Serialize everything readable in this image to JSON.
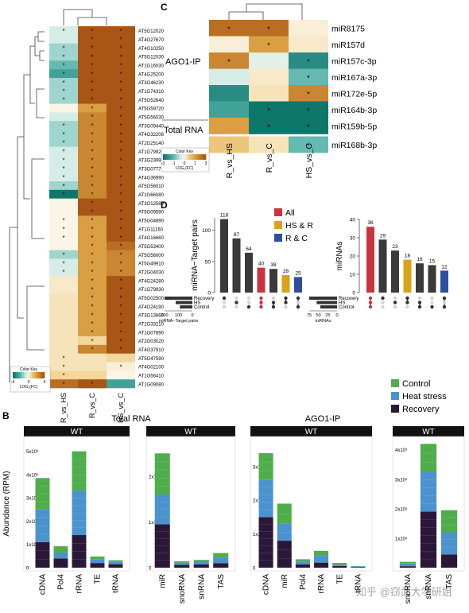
{
  "panels": {
    "a": "",
    "b": "B",
    "c": "C",
    "d": "D"
  },
  "colors": {
    "teal_dark": "#0e776c",
    "teal_mid": "#58b3aa",
    "teal_light": "#cdebe6",
    "neutral": "#fbf5e8",
    "orange_light": "#f0d08a",
    "orange_mid": "#d89a3a",
    "orange_dark": "#a85516",
    "control": "#4fae4b",
    "heat": "#4b93cf",
    "recovery": "#2b1838",
    "all": "#cc3340",
    "hs_r": "#d8a318",
    "r_c": "#2e4ea1",
    "upset_bar": "#3a3a3a"
  },
  "chart_data": [
    {
      "id": "heatmap-a",
      "type": "heatmap",
      "columns": [
        "R_vs_HS",
        "R_vs_C",
        "HS_vs_C"
      ],
      "rows": [
        "AT5G12020",
        "AT4G27670",
        "AT4G10250",
        "AT5G12030",
        "AT1G16030",
        "AT4G25200",
        "AT3G46230",
        "AT1G74310",
        "AT5G52640",
        "AT5G59720",
        "AT5G56030",
        "AT3G09440",
        "AT4G32208",
        "AT2G25140",
        "AT1G79920",
        "AT3G23990",
        "AT3G07770",
        "AT4G36990",
        "AT5G56010",
        "AT1G66080",
        "AT3G12580",
        "AT5G09590",
        "AT5G04890",
        "AT1G11160",
        "AT4G16660",
        "AT5G53400",
        "AT5G56000",
        "AT5G49910",
        "AT2G04030",
        "AT4G24280",
        "AT1G79930",
        "AT5G02500",
        "AT4G24190",
        "AT3G13860",
        "AT2G33210",
        "AT1G07890",
        "AT2G03020",
        "AT4G37910",
        "AT5G47590",
        "AT4G02100",
        "AT1G56410",
        "AT1G09080"
      ],
      "values": [
        [
          -0.5,
          3,
          3
        ],
        [
          -0.5,
          3,
          3
        ],
        [
          -1,
          3,
          3
        ],
        [
          -1,
          3,
          3
        ],
        [
          -1.5,
          3,
          3
        ],
        [
          -2,
          3,
          3
        ],
        [
          -1,
          3,
          3
        ],
        [
          -1,
          3,
          3
        ],
        [
          -1,
          3,
          3
        ],
        [
          0,
          1.5,
          3
        ],
        [
          -0.5,
          2,
          3
        ],
        [
          -1,
          2,
          3
        ],
        [
          -1,
          2,
          3
        ],
        [
          -1,
          2,
          3
        ],
        [
          -0.5,
          2,
          3
        ],
        [
          -0.5,
          2,
          3
        ],
        [
          -0.5,
          2,
          3
        ],
        [
          -0.5,
          2,
          3
        ],
        [
          -1,
          2,
          3
        ],
        [
          -3,
          2,
          3
        ],
        [
          0,
          3,
          3
        ],
        [
          0,
          3,
          3
        ],
        [
          0,
          1.5,
          3
        ],
        [
          0,
          1.5,
          3
        ],
        [
          0,
          1.5,
          3
        ],
        [
          0,
          1.5,
          2.5
        ],
        [
          -1,
          1.5,
          2
        ],
        [
          -0.5,
          1.5,
          2
        ],
        [
          -0.5,
          1.5,
          2
        ],
        [
          0.2,
          1.5,
          3
        ],
        [
          0.2,
          1.5,
          3
        ],
        [
          0.3,
          1.5,
          3
        ],
        [
          0.3,
          1.5,
          3
        ],
        [
          0.3,
          1.5,
          3
        ],
        [
          0.3,
          1.5,
          3
        ],
        [
          0.3,
          1.5,
          3
        ],
        [
          0.3,
          0.5,
          3
        ],
        [
          0.3,
          2,
          3
        ],
        [
          0.3,
          0.3,
          0.5
        ],
        [
          0.3,
          0.3,
          0.1
        ],
        [
          0.5,
          0.5,
          0
        ],
        [
          2.5,
          3,
          -2
        ]
      ],
      "stars": [
        [
          1,
          1,
          1
        ],
        [
          0,
          1,
          1
        ],
        [
          1,
          1,
          1
        ],
        [
          1,
          1,
          1
        ],
        [
          1,
          1,
          1
        ],
        [
          1,
          1,
          1
        ],
        [
          1,
          1,
          1
        ],
        [
          1,
          1,
          1
        ],
        [
          1,
          1,
          1
        ],
        [
          0,
          1,
          1
        ],
        [
          0,
          1,
          1
        ],
        [
          1,
          1,
          1
        ],
        [
          1,
          1,
          1
        ],
        [
          1,
          1,
          1
        ],
        [
          1,
          1,
          1
        ],
        [
          1,
          1,
          1
        ],
        [
          1,
          1,
          1
        ],
        [
          1,
          1,
          1
        ],
        [
          1,
          1,
          1
        ],
        [
          1,
          1,
          1
        ],
        [
          0,
          1,
          1
        ],
        [
          0,
          1,
          1
        ],
        [
          1,
          1,
          1
        ],
        [
          1,
          1,
          1
        ],
        [
          1,
          1,
          1
        ],
        [
          0,
          1,
          1
        ],
        [
          1,
          1,
          1
        ],
        [
          1,
          1,
          1
        ],
        [
          1,
          1,
          1
        ],
        [
          0,
          1,
          1
        ],
        [
          0,
          1,
          1
        ],
        [
          0,
          1,
          1
        ],
        [
          0,
          1,
          1
        ],
        [
          0,
          1,
          1
        ],
        [
          0,
          1,
          1
        ],
        [
          0,
          1,
          1
        ],
        [
          0,
          1,
          1
        ],
        [
          0,
          1,
          1
        ],
        [
          1,
          0,
          0
        ],
        [
          1,
          0,
          1
        ],
        [
          1,
          0,
          0
        ],
        [
          1,
          1,
          0
        ]
      ],
      "key_title": "Color Key",
      "key_ticks": [
        "-4",
        "0",
        "4"
      ],
      "key_label": "LOG₂(FC)",
      "key_range": [
        -4,
        4
      ]
    },
    {
      "id": "heatmap-c",
      "type": "heatmap",
      "columns": [
        "R_vs_HS",
        "R_vs_C",
        "HS_vs_C"
      ],
      "rows": [
        "miR8175",
        "miR157d",
        "miR157c-3p",
        "miR167a-3p",
        "miR172e-5p",
        "miR164b-3p",
        "miR159b-5p",
        "miR168b-3p"
      ],
      "row_groups": [
        {
          "label": "AGO1-IP",
          "rows": 7
        },
        {
          "label": "Total RNA",
          "rows": 1
        }
      ],
      "values": [
        [
          2.5,
          2.5,
          0.1
        ],
        [
          0.1,
          1.5,
          0.2
        ],
        [
          2,
          -0.3,
          -2.5
        ],
        [
          -0.5,
          0.2,
          -1.5
        ],
        [
          -2.5,
          0.3,
          2
        ],
        [
          -2,
          -3,
          -3
        ],
        [
          1.5,
          -3,
          -3
        ],
        [
          0.8,
          0.3,
          -1.5
        ]
      ],
      "stars": [
        [
          1,
          1,
          0
        ],
        [
          0,
          1,
          0
        ],
        [
          1,
          0,
          1
        ],
        [
          0,
          0,
          1
        ],
        [
          0,
          0,
          1
        ],
        [
          0,
          1,
          1
        ],
        [
          0,
          1,
          1
        ],
        [
          0,
          0,
          1
        ]
      ],
      "key_title": "Color Key",
      "key_ticks": [
        "-3",
        "-1",
        "0",
        "1",
        "3"
      ],
      "key_label": "LOG₂(FC)",
      "key_range": [
        -3,
        3
      ]
    },
    {
      "id": "upset-targets",
      "type": "bar",
      "ylabel": "miRNA−Target pairs",
      "ylim": [
        0,
        120
      ],
      "yticks": [
        "0",
        "50",
        "100"
      ],
      "values": [
        118,
        87,
        64,
        40,
        38,
        28,
        25
      ],
      "bar_colors": [
        "upset_bar",
        "upset_bar",
        "upset_bar",
        "all",
        "upset_bar",
        "hs_r",
        "r_c"
      ],
      "sets": [
        "Recovery",
        "HS",
        "Control"
      ],
      "set_sizes": [
        200,
        120,
        90
      ],
      "set_axis_ticks": [
        "200",
        "100",
        "0"
      ],
      "set_axis_label": "miRNA−Target pairs",
      "matrix": [
        [
          1,
          0,
          0
        ],
        [
          0,
          1,
          0
        ],
        [
          0,
          0,
          1
        ],
        [
          1,
          1,
          1
        ],
        [
          0,
          1,
          1
        ],
        [
          1,
          1,
          0
        ],
        [
          1,
          0,
          1
        ]
      ]
    },
    {
      "id": "upset-mirnas",
      "type": "bar",
      "ylabel": "miRNAs",
      "ylim": [
        0,
        40
      ],
      "yticks": [
        "0",
        "10",
        "20",
        "30",
        "40"
      ],
      "values": [
        36,
        29,
        23,
        18,
        16,
        15,
        12
      ],
      "bar_colors": [
        "all",
        "upset_bar",
        "upset_bar",
        "hs_r",
        "upset_bar",
        "upset_bar",
        "r_c"
      ],
      "sets": [
        "Recovery",
        "HS",
        "Control"
      ],
      "set_sizes": [
        75,
        55,
        45
      ],
      "set_axis_ticks": [
        "75",
        "50",
        "25",
        "0"
      ],
      "set_axis_label": "miRNAs",
      "matrix": [
        [
          1,
          1,
          1
        ],
        [
          1,
          0,
          0
        ],
        [
          0,
          1,
          0
        ],
        [
          1,
          1,
          0
        ],
        [
          0,
          1,
          1
        ],
        [
          0,
          0,
          1
        ],
        [
          1,
          0,
          1
        ]
      ]
    },
    {
      "id": "bar-total-1",
      "type": "bar",
      "stacked": true,
      "group_title": "Total RNA",
      "strip": "WT",
      "ylabel": "Abundance (RPM)",
      "ylim": [
        0,
        550000
      ],
      "yticks": [
        "0",
        "1x10⁵",
        "2x10⁵",
        "3x10⁵",
        "4x10⁵",
        "5x10⁵"
      ],
      "ytick_values": [
        0,
        100000,
        200000,
        300000,
        400000,
        500000
      ],
      "categories": [
        "cDNA",
        "Pol4",
        "rRNA",
        "TE",
        "tRNA"
      ],
      "series": [
        {
          "name": "Recovery",
          "values": [
            110000,
            40000,
            140000,
            20000,
            15000
          ]
        },
        {
          "name": "Heat stress",
          "values": [
            140000,
            25000,
            190000,
            15000,
            10000
          ]
        },
        {
          "name": "Control",
          "values": [
            135000,
            27000,
            170000,
            13000,
            7000
          ]
        }
      ]
    },
    {
      "id": "bar-total-2",
      "type": "bar",
      "stacked": true,
      "strip": "WT",
      "ylim": [
        0,
        280000
      ],
      "yticks": [
        "0",
        "1x10⁵",
        "2x10⁵"
      ],
      "ytick_values": [
        0,
        100000,
        200000
      ],
      "categories": [
        "miR",
        "snoRNA",
        "snRNA",
        "TAS"
      ],
      "series": [
        {
          "name": "Recovery",
          "values": [
            95000,
            6000,
            7000,
            10000
          ]
        },
        {
          "name": "Heat stress",
          "values": [
            65000,
            5000,
            6000,
            12000
          ]
        },
        {
          "name": "Control",
          "values": [
            90000,
            3000,
            4000,
            10000
          ]
        }
      ]
    },
    {
      "id": "bar-ago-1",
      "type": "bar",
      "stacked": true,
      "group_title": "AGO1-IP",
      "strip": "WT",
      "ylim": [
        0,
        375000
      ],
      "yticks": [
        "0",
        "1x10⁵",
        "2x10⁵",
        "3x10⁵"
      ],
      "ytick_values": [
        0,
        100000,
        200000,
        300000
      ],
      "categories": [
        "cDNA",
        "miR",
        "Pol4",
        "rRNA",
        "TE",
        "tRNA"
      ],
      "series": [
        {
          "name": "Recovery",
          "values": [
            150000,
            80000,
            10000,
            15000,
            5000,
            2000
          ]
        },
        {
          "name": "Heat stress",
          "values": [
            110000,
            50000,
            7000,
            20000,
            4000,
            2000
          ]
        },
        {
          "name": "Control",
          "values": [
            80000,
            60000,
            8000,
            15000,
            5000,
            1000
          ]
        }
      ]
    },
    {
      "id": "bar-ago-2",
      "type": "bar",
      "stacked": true,
      "strip": "WT",
      "ylim": [
        0,
        480000
      ],
      "yticks": [
        "1x10⁵",
        "2x10⁵",
        "3x10⁵",
        "4x10⁵"
      ],
      "ytick_values": [
        100000,
        200000,
        300000,
        400000
      ],
      "categories": [
        "snoRNA",
        "snRNA",
        "TAS"
      ],
      "series": [
        {
          "name": "Recovery",
          "values": [
            5000,
            190000,
            45000
          ]
        },
        {
          "name": "Heat stress",
          "values": [
            9000,
            135000,
            75000
          ]
        },
        {
          "name": "Control",
          "values": [
            6000,
            95000,
            75000
          ]
        }
      ]
    }
  ],
  "legend_d": [
    {
      "label": "All",
      "color": "all"
    },
    {
      "label": "HS & R",
      "color": "hs_r"
    },
    {
      "label": "R & C",
      "color": "r_c"
    }
  ],
  "legend_b": [
    {
      "label": "Control",
      "color": "control"
    },
    {
      "label": "Heat stress",
      "color": "heat"
    },
    {
      "label": "Recovery",
      "color": "recovery"
    }
  ],
  "watermark": "知乎 @窃武大学研姐"
}
